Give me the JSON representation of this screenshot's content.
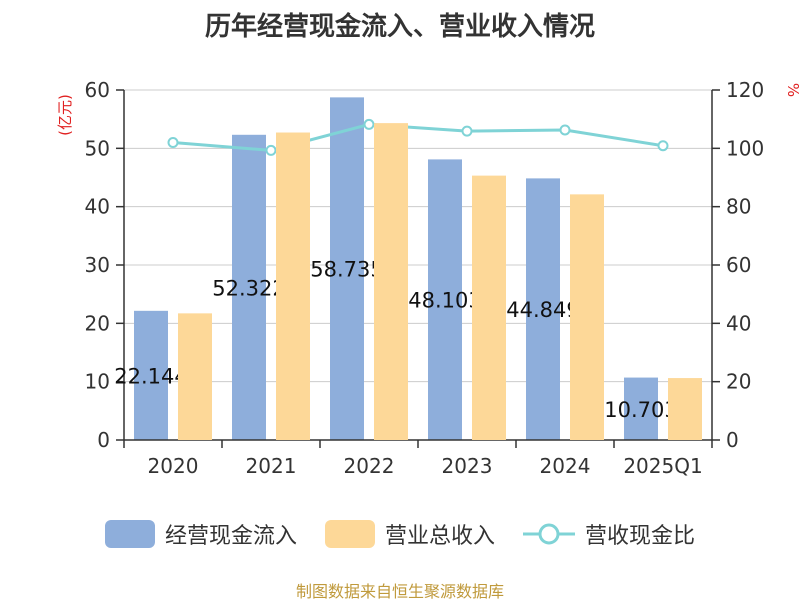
{
  "chart_data": {
    "type": "bar",
    "title": "历年经营现金流入、营业收入情况",
    "categories": [
      "2020",
      "2021",
      "2022",
      "2023",
      "2024",
      "2025Q1"
    ],
    "series": [
      {
        "name": "经营现金流入",
        "type": "bar",
        "axis": "left",
        "color": "#8eaedb",
        "values": [
          22.144,
          52.322,
          58.735,
          48.103,
          44.849,
          10.703
        ],
        "labels": [
          "22.144",
          "52.322",
          "58.735",
          "48.103",
          "44.849",
          "10.703"
        ]
      },
      {
        "name": "营业总收入",
        "type": "bar",
        "axis": "left",
        "color": "#fdd898",
        "values": [
          21.7,
          52.7,
          54.3,
          45.3,
          42.1,
          10.6
        ]
      },
      {
        "name": "营收现金比",
        "type": "line",
        "axis": "right",
        "color": "#7fd3d6",
        "values": [
          102,
          99.3,
          108.2,
          105.9,
          106.3,
          100.9
        ]
      }
    ],
    "y_left": {
      "label": "(亿元)",
      "min": 0,
      "max": 60,
      "ticks": [
        0,
        10,
        20,
        30,
        40,
        50,
        60
      ]
    },
    "y_right": {
      "label": "%",
      "min": 0,
      "max": 120,
      "ticks": [
        0,
        20,
        40,
        60,
        80,
        100,
        120
      ]
    },
    "grid": true,
    "legend_position": "bottom",
    "source": "制图数据来自恒生聚源数据库"
  }
}
